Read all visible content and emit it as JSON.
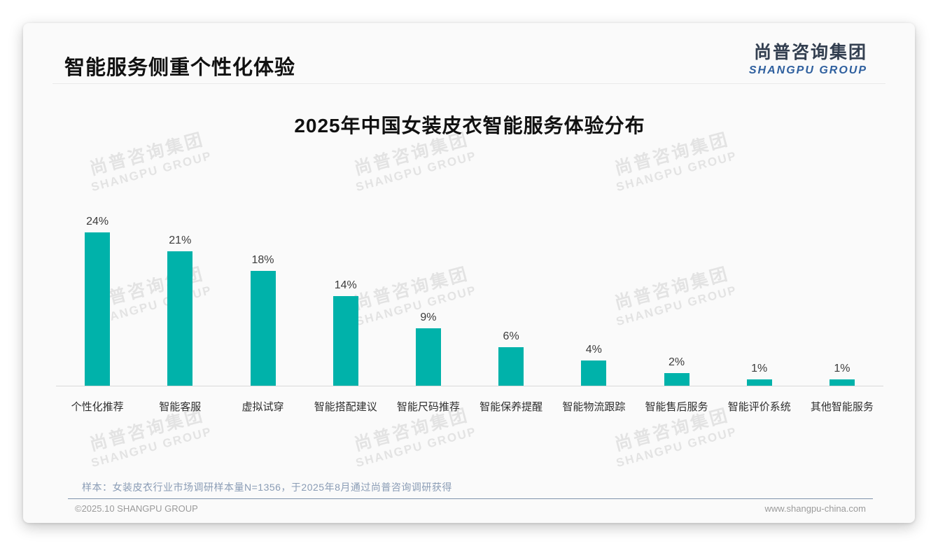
{
  "slide": {
    "title": "智能服务侧重个性化体验",
    "logo": {
      "cn": "尚普咨询集团",
      "en": "SHANGPU GROUP"
    },
    "watermark": {
      "line1": "尚普咨询集团",
      "line2": "SHANGPU GROUP"
    },
    "note": "样本：女装皮衣行业市场调研样本量N=1356，于2025年8月通过尚普咨询调研获得",
    "footer": {
      "left": "©2025.10 SHANGPU GROUP",
      "right": "www.shangpu-china.com"
    }
  },
  "chart_data": {
    "type": "bar",
    "title": "2025年中国女装皮衣智能服务体验分布",
    "categories": [
      "个性化推荐",
      "智能客服",
      "虚拟试穿",
      "智能搭配建议",
      "智能尺码推荐",
      "智能保养提醒",
      "智能物流跟踪",
      "智能售后服务",
      "智能评价系统",
      "其他智能服务"
    ],
    "values": [
      24,
      21,
      18,
      14,
      9,
      6,
      4,
      2,
      1,
      1
    ],
    "unit": "%",
    "data_labels": [
      "24%",
      "21%",
      "18%",
      "14%",
      "9%",
      "6%",
      "4%",
      "2%",
      "1%",
      "1%"
    ],
    "bar_color": "#00B2AA",
    "xlabel": "",
    "ylabel": "",
    "ylim": [
      0,
      26
    ],
    "grid": false,
    "legend": false
  }
}
